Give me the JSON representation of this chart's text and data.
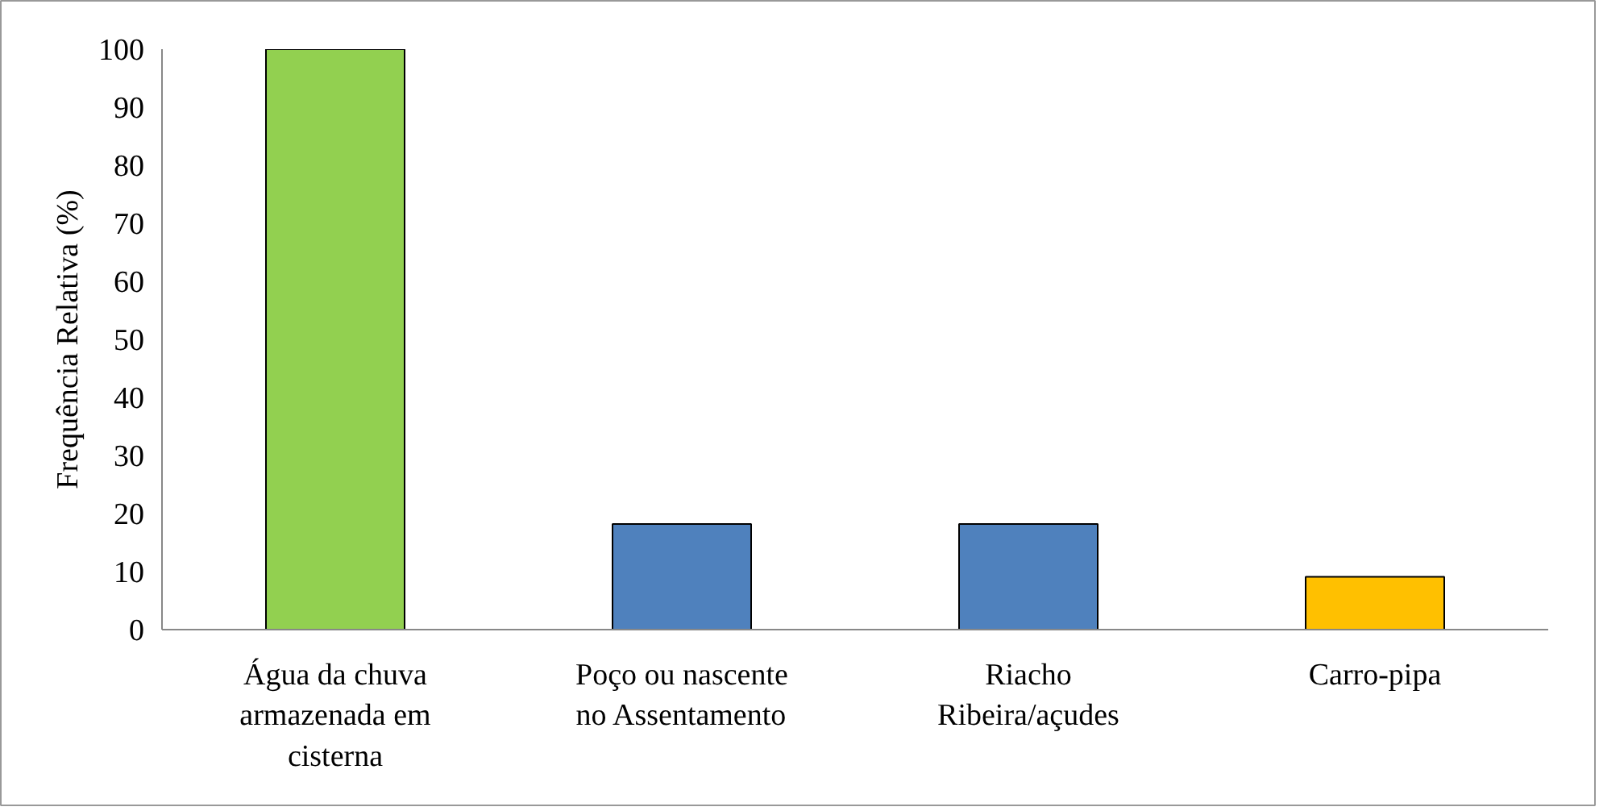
{
  "chart_data": {
    "type": "bar",
    "ylabel": "Frequência Relativa (%)",
    "categories": [
      "Água da chuva\narmazenada em\ncisterna",
      "Poço ou nascente\nno Assentamento",
      "Riacho\nRibeira/açudes",
      "Carro-pipa"
    ],
    "values": [
      100,
      18.2,
      18.2,
      9.1
    ],
    "colors": [
      "#92d050",
      "#4f81bd",
      "#4f81bd",
      "#ffc000"
    ],
    "ylim": [
      0,
      100
    ],
    "yticks": [
      0,
      10,
      20,
      30,
      40,
      50,
      60,
      70,
      80,
      90,
      100
    ],
    "grid": false
  }
}
